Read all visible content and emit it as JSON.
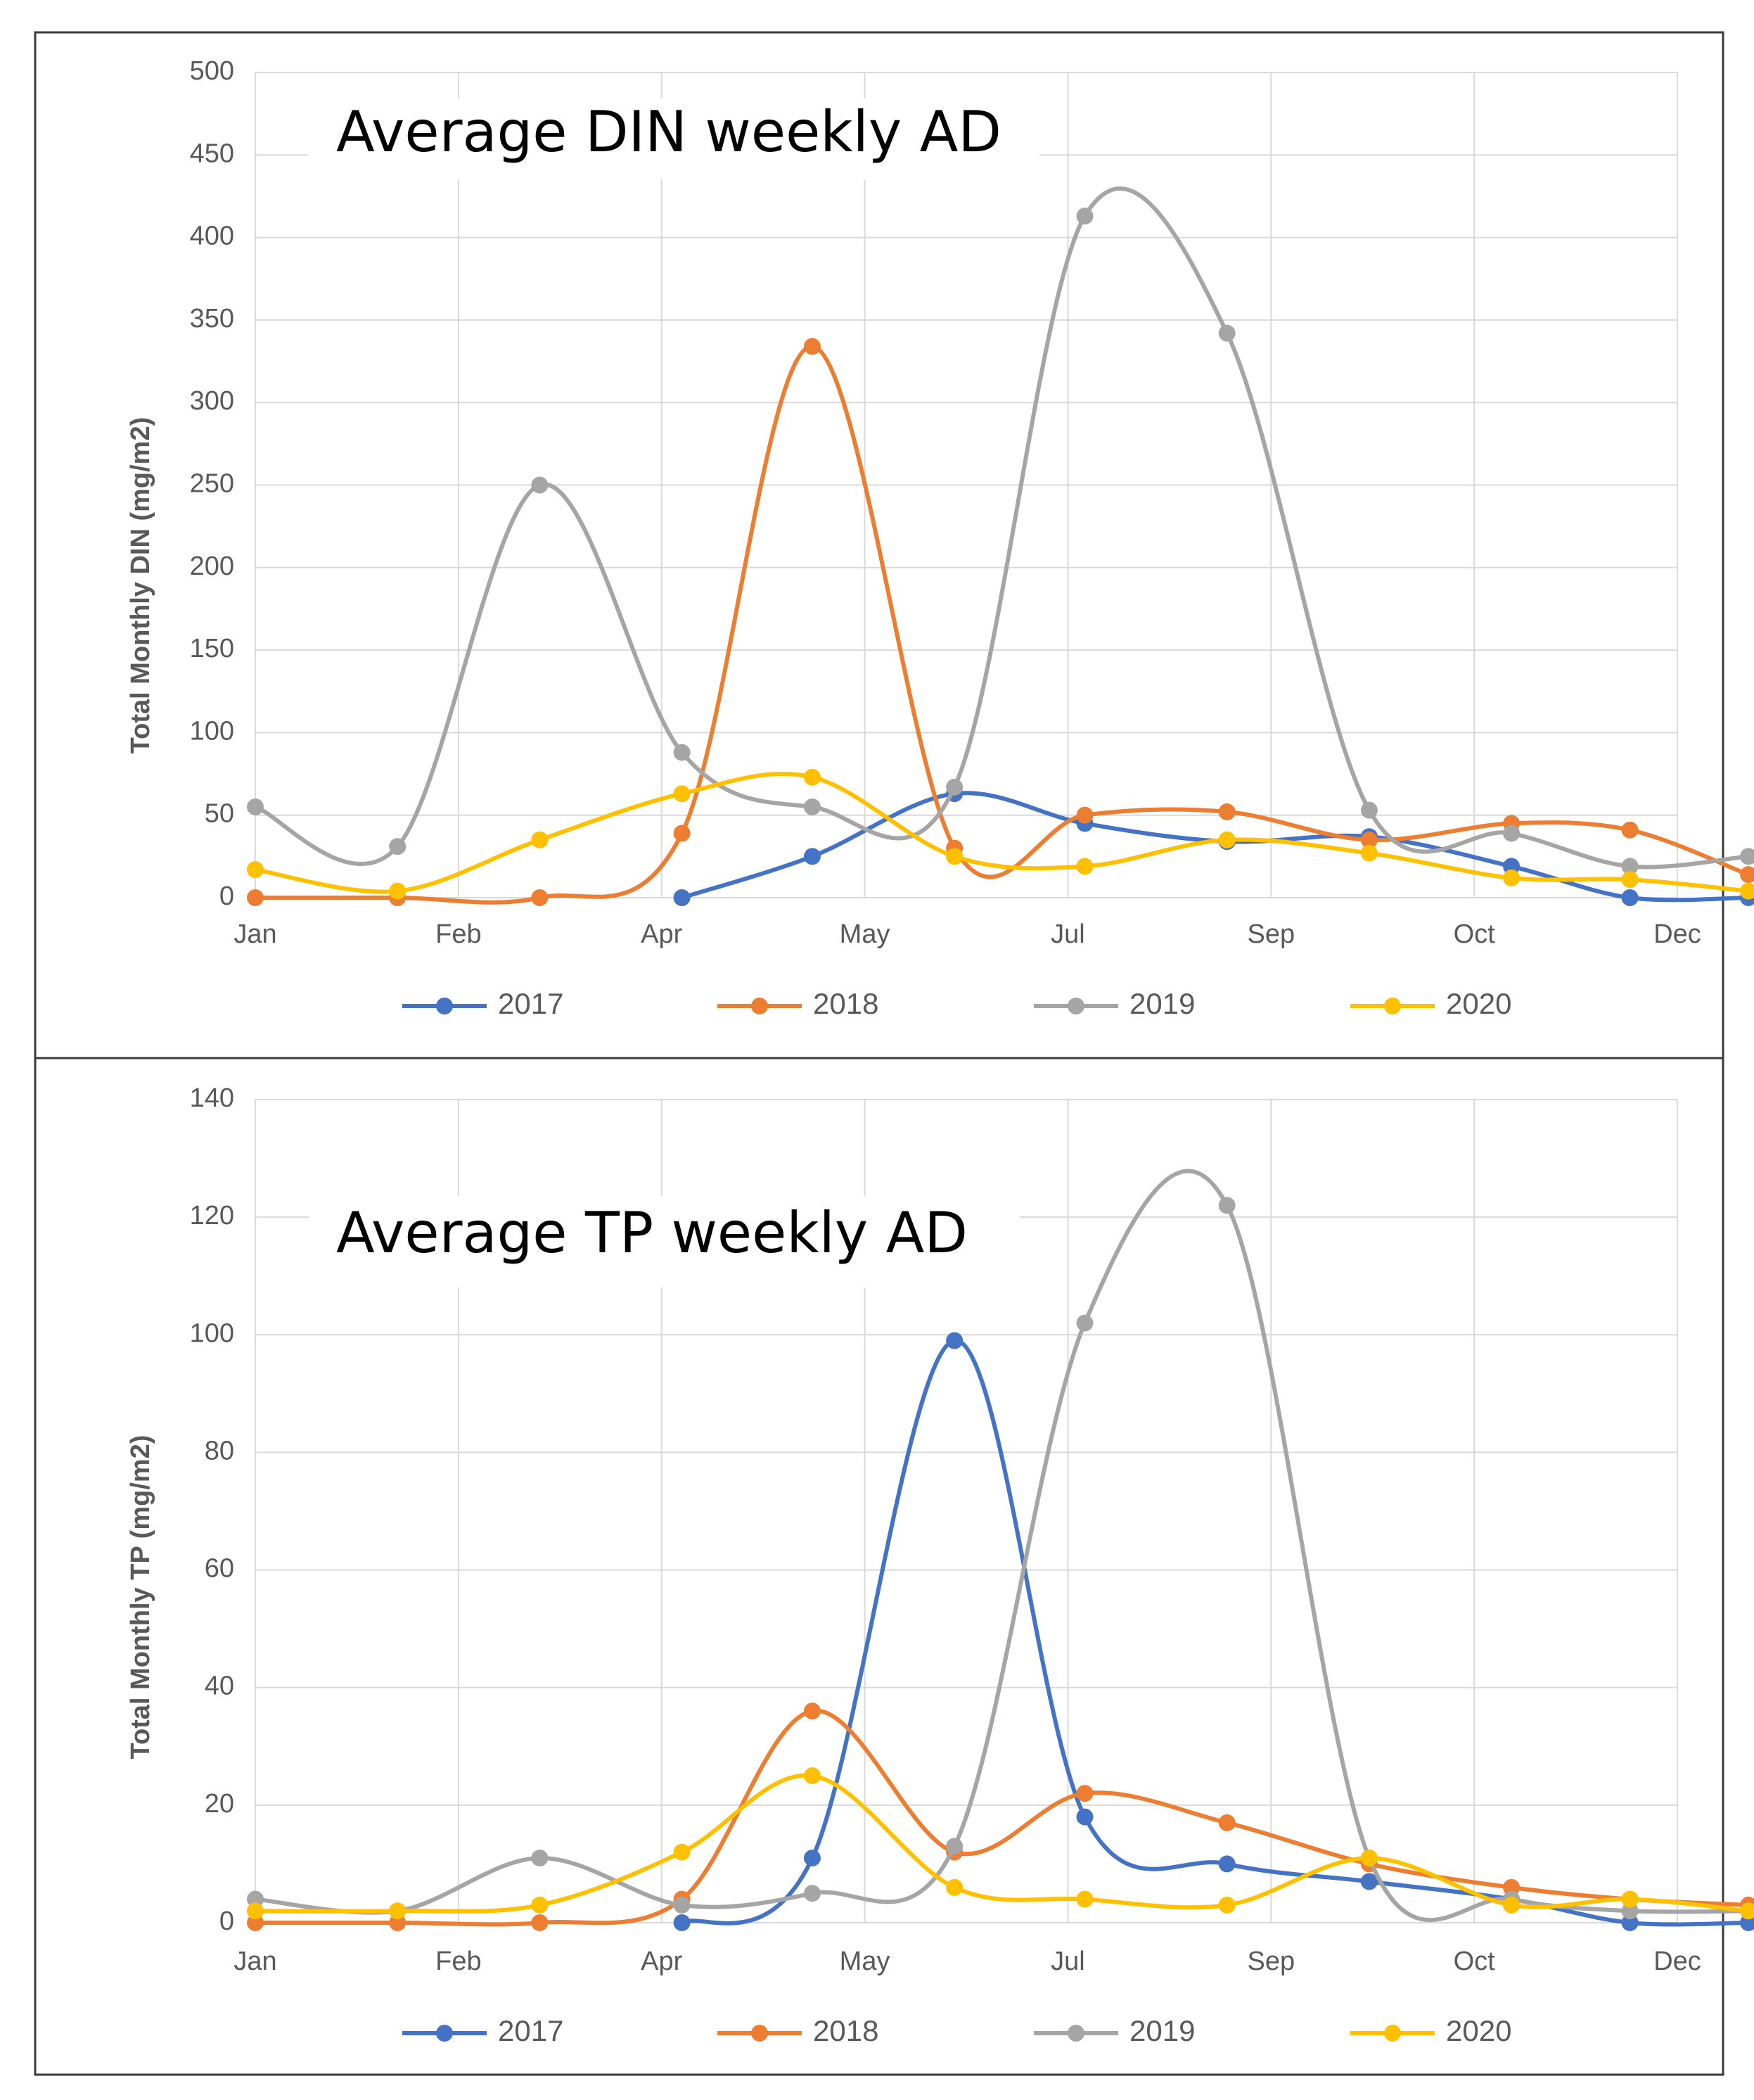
{
  "colors": {
    "2017": "#4472c4",
    "2018": "#ed7d31",
    "2019": "#a5a5a5",
    "2020": "#ffc000"
  },
  "chart_data": [
    {
      "type": "line",
      "title": "Average DIN weekly AD",
      "xlabel": "",
      "ylabel": "Total Monthly DIN (mg/m2)",
      "x_tick_labels": [
        "Jan",
        "Feb",
        "Apr",
        "May",
        "Jul",
        "Sep",
        "Oct",
        "Dec"
      ],
      "y_ticks": [
        "0",
        "50",
        "100",
        "150",
        "200",
        "250",
        "300",
        "350",
        "400",
        "450",
        "500"
      ],
      "ylim": [
        0,
        500
      ],
      "xlim": [
        0,
        12
      ],
      "grid": true,
      "legend_position": "bottom",
      "series": [
        {
          "name": "2017",
          "x": [
            3.6,
            4.7,
            5.9,
            7.0,
            8.2,
            9.4,
            10.6,
            11.6,
            12.6
          ],
          "values": [
            0,
            25,
            63,
            45,
            34,
            37,
            19,
            0,
            0
          ]
        },
        {
          "name": "2018",
          "x": [
            0,
            1.2,
            2.4,
            3.6,
            4.7,
            5.9,
            7.0,
            8.2,
            9.4,
            10.6,
            11.6,
            12.6
          ],
          "values": [
            0,
            0,
            0,
            39,
            334,
            30,
            50,
            52,
            35,
            45,
            41,
            14
          ]
        },
        {
          "name": "2019",
          "x": [
            0,
            1.2,
            2.4,
            3.6,
            4.7,
            5.9,
            7.0,
            8.2,
            9.4,
            10.6,
            11.6,
            12.6
          ],
          "values": [
            55,
            31,
            250,
            88,
            55,
            67,
            413,
            342,
            53,
            39,
            19,
            25
          ]
        },
        {
          "name": "2020",
          "x": [
            0,
            1.2,
            2.4,
            3.6,
            4.7,
            5.9,
            7.0,
            8.2,
            9.4,
            10.6,
            11.6,
            12.6
          ],
          "values": [
            17,
            4,
            35,
            63,
            73,
            25,
            19,
            35,
            27,
            12,
            11,
            4
          ]
        }
      ]
    },
    {
      "type": "line",
      "title": "Average TP weekly AD",
      "xlabel": "",
      "ylabel": "Total Monthly TP (mg/m2)",
      "x_tick_labels": [
        "Jan",
        "Feb",
        "Apr",
        "May",
        "Jul",
        "Sep",
        "Oct",
        "Dec"
      ],
      "y_ticks": [
        "0",
        "20",
        "40",
        "60",
        "80",
        "100",
        "120",
        "140"
      ],
      "ylim": [
        0,
        140
      ],
      "xlim": [
        0,
        12
      ],
      "grid": true,
      "legend_position": "bottom",
      "series": [
        {
          "name": "2017",
          "x": [
            3.6,
            4.7,
            5.9,
            7.0,
            8.2,
            9.4,
            10.6,
            11.6,
            12.6
          ],
          "values": [
            0,
            11,
            99,
            18,
            10,
            7,
            4,
            0,
            0
          ]
        },
        {
          "name": "2018",
          "x": [
            0,
            1.2,
            2.4,
            3.6,
            4.7,
            5.9,
            7.0,
            8.2,
            9.4,
            10.6,
            11.6,
            12.6
          ],
          "values": [
            0,
            0,
            0,
            4,
            36,
            12,
            22,
            17,
            10,
            6,
            4,
            3
          ]
        },
        {
          "name": "2019",
          "x": [
            0,
            1.2,
            2.4,
            3.6,
            4.7,
            5.9,
            7.0,
            8.2,
            9.4,
            10.6,
            11.6,
            12.6
          ],
          "values": [
            4,
            2,
            11,
            3,
            5,
            13,
            102,
            122,
            11,
            4,
            2,
            2
          ]
        },
        {
          "name": "2020",
          "x": [
            0,
            1.2,
            2.4,
            3.6,
            4.7,
            5.9,
            7.0,
            8.2,
            9.4,
            10.6,
            11.6,
            12.6
          ],
          "values": [
            2,
            2,
            3,
            12,
            25,
            6,
            4,
            3,
            11,
            3,
            4,
            2
          ]
        }
      ]
    }
  ]
}
